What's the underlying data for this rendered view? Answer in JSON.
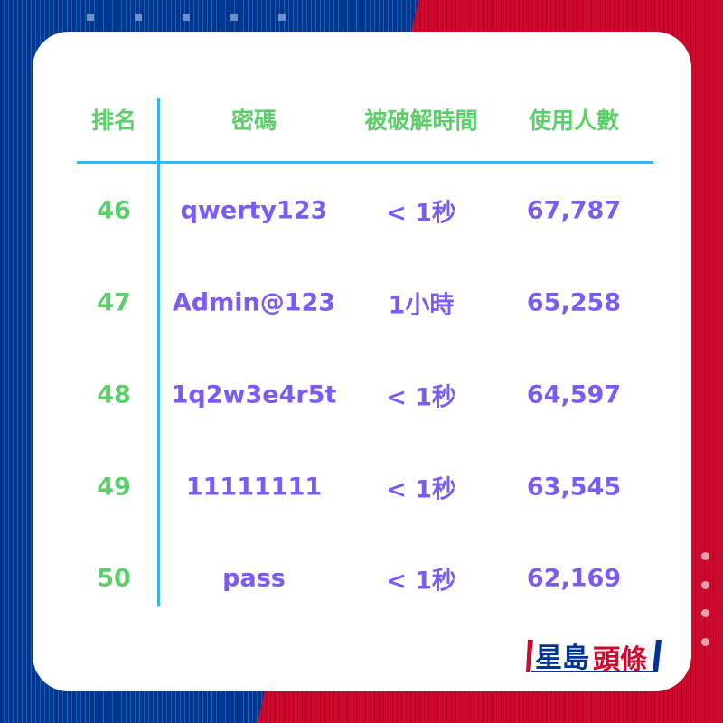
{
  "headers": [
    "排名",
    "密碼",
    "被破解時間",
    "使用人數"
  ],
  "rows": [
    {
      "rank": "46",
      "password": "qwerty123",
      "crack_time": "< 1秒",
      "users": "67,787"
    },
    {
      "rank": "47",
      "password": "Admin@123",
      "crack_time": "1小時",
      "users": "65,258"
    },
    {
      "rank": "48",
      "password": "1q2w3e4r5t",
      "crack_time": "< 1秒",
      "users": "64,597"
    },
    {
      "rank": "49",
      "password": "11111111",
      "crack_time": "< 1秒",
      "users": "63,545"
    },
    {
      "rank": "50",
      "password": "pass",
      "crack_time": "< 1秒",
      "users": "62,169"
    }
  ],
  "logo": {
    "text_blue": "星島",
    "text_red": "頭條"
  },
  "colors": {
    "bg_blue": "#003596",
    "bg_red": "#d1082e",
    "header_green": "#5ccf6a",
    "value_purple": "#7a5cf4",
    "rule_cyan": "#38b6ea"
  }
}
